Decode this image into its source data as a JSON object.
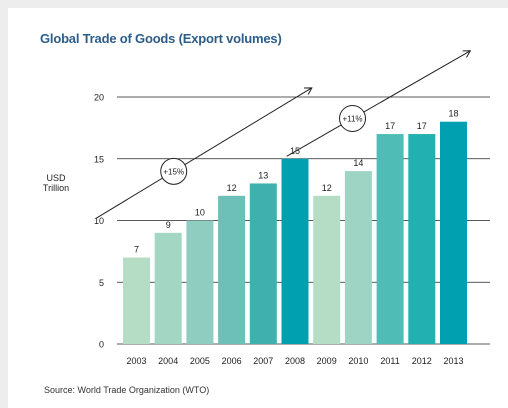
{
  "chart_data": {
    "type": "bar",
    "title": "Global Trade of Goods (Export volumes)",
    "ylabel_line1": "USD",
    "ylabel_line2": "Trillion",
    "xlabel": "",
    "ylim": [
      0,
      20
    ],
    "yticks": [
      0,
      5,
      10,
      15,
      20
    ],
    "categories": [
      "2003",
      "2004",
      "2005",
      "2006",
      "2007",
      "2008",
      "2009",
      "2010",
      "2011",
      "2012",
      "2013"
    ],
    "values": [
      7,
      9,
      10,
      12,
      13,
      15,
      12,
      14,
      17,
      17,
      18
    ],
    "bar_colors": [
      "#b5dcc4",
      "#a4d6c4",
      "#8fcdc0",
      "#6cc0b8",
      "#3fb0ad",
      "#00a0b0",
      "#b5dcc4",
      "#9ed4c3",
      "#4fbdb6",
      "#22b0b1",
      "#00a0b0"
    ],
    "annotations": [
      {
        "text": "+15%",
        "from_category": "2003",
        "to_category": "2008"
      },
      {
        "text": "+11%",
        "from_category": "2009",
        "to_category": "2013"
      }
    ],
    "grid": true,
    "legend": "none"
  },
  "source": "Source: World Trade Organization (WTO)",
  "colors": {
    "title": "#2c5d8a",
    "axis": "#222222"
  }
}
